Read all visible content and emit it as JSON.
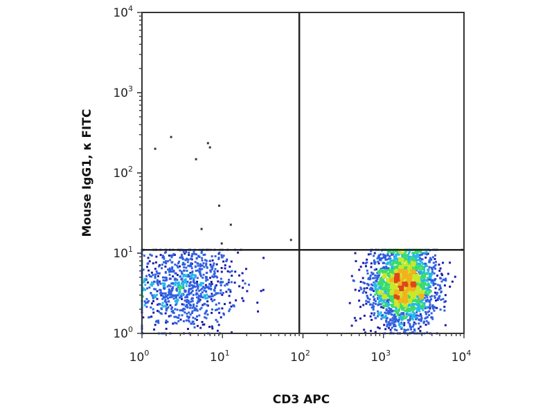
{
  "chart_data": {
    "type": "scatter",
    "subtype": "density-dot-plot",
    "xlabel": "CD3 APC",
    "ylabel": "Mouse IgG1, κ FITC",
    "xscale": "log",
    "yscale": "log",
    "xlim": [
      1,
      10000
    ],
    "ylim": [
      1,
      10000
    ],
    "x_ticks": [
      {
        "base": "10",
        "exp": "0"
      },
      {
        "base": "10",
        "exp": "1"
      },
      {
        "base": "10",
        "exp": "2"
      },
      {
        "base": "10",
        "exp": "3"
      },
      {
        "base": "10",
        "exp": "4"
      }
    ],
    "y_ticks": [
      {
        "base": "10",
        "exp": "0"
      },
      {
        "base": "10",
        "exp": "1"
      },
      {
        "base": "10",
        "exp": "2"
      },
      {
        "base": "10",
        "exp": "3"
      },
      {
        "base": "10",
        "exp": "4"
      }
    ],
    "quadrant_gates": {
      "x": 90,
      "y": 11
    },
    "populations": [
      {
        "center_x": 3.3,
        "center_y": 3.8,
        "spread_x_decades": 0.33,
        "spread_y_decades": 0.27,
        "count": 900
      },
      {
        "center_x": 1780,
        "center_y": 4.0,
        "spread_x_decades": 0.2,
        "spread_y_decades": 0.24,
        "count": 2600
      }
    ],
    "sparse_points": [
      [
        1.46,
        200
      ],
      [
        2.3,
        280
      ],
      [
        4.7,
        148
      ],
      [
        6.6,
        235
      ],
      [
        7.0,
        208
      ],
      [
        9.1,
        39
      ],
      [
        5.5,
        20
      ],
      [
        12.7,
        22.6
      ],
      [
        9.8,
        13.2
      ],
      [
        71,
        14.6
      ]
    ],
    "density_colors": [
      "#1c1ca8",
      "#2f5fe0",
      "#27b8e8",
      "#3bdc6a",
      "#c8e82a",
      "#f2b21c",
      "#e0461a"
    ],
    "grid": false,
    "legend": "none"
  }
}
